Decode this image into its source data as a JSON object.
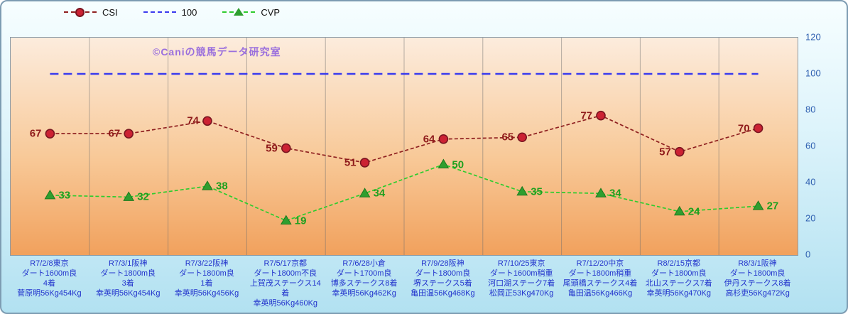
{
  "watermark": "©Caniの競馬データ研究室",
  "legend": {
    "items": [
      {
        "label": "CSI"
      },
      {
        "label": "100"
      },
      {
        "label": "CVP"
      }
    ]
  },
  "y_axis": {
    "side": "right",
    "ticks": [
      0,
      20,
      40,
      60,
      80,
      100,
      120
    ],
    "color": "#2e5fb0"
  },
  "colors": {
    "watermark": "#9a6fdd",
    "x_label_text": "#2233cc",
    "outer_background_top": "#f7feff",
    "outer_background_bottom": "#b2e1f1",
    "plot_background_top": "#fcecdd",
    "plot_background_bottom": "#f1a15d"
  },
  "chart_data": {
    "type": "line",
    "title": "",
    "xlabel": "",
    "ylabel": "",
    "ylim": [
      0,
      120
    ],
    "grid": "vertical-only",
    "legend_position": "top-left",
    "categories": [
      [
        "R7/2/8東京",
        "ダート1600m良",
        "4着",
        "菅原明56Kg454Kg"
      ],
      [
        "R7/3/1阪神",
        "ダート1800m良",
        "3着",
        "幸英明56Kg454Kg"
      ],
      [
        "R7/3/22阪神",
        "ダート1800m良",
        "1着",
        "幸英明56Kg456Kg"
      ],
      [
        "R7/5/17京都",
        "ダート1800m不良",
        "上賀茂ステークス14着",
        "幸英明56Kg460Kg"
      ],
      [
        "R7/6/28小倉",
        "ダート1700m良",
        "博多ステークス8着",
        "幸英明56Kg462Kg"
      ],
      [
        "R7/9/28阪神",
        "ダート1800m良",
        "堺ステークス5着",
        "亀田温56Kg468Kg"
      ],
      [
        "R7/10/25東京",
        "ダート1600m稍重",
        "河口湖ステーク7着",
        "松岡正53Kg470Kg"
      ],
      [
        "R7/12/20中京",
        "ダート1800m稍重",
        "尾頭橋ステークス4着",
        "亀田温56Kg466Kg"
      ],
      [
        "R8/2/15京都",
        "ダート1800m良",
        "北山ステークス7着",
        "幸英明56Kg470Kg"
      ],
      [
        "R8/3/1阪神",
        "ダート1800m良",
        "伊丹ステークス8着",
        "高杉吏56Kg472Kg"
      ]
    ],
    "series": [
      {
        "name": "CSI",
        "values": [
          67,
          67,
          74,
          59,
          51,
          64,
          65,
          77,
          57,
          70
        ],
        "line_color": "#8f2020",
        "marker": "circle",
        "marker_color": "#cc2233",
        "marker_edge": "#7a1520",
        "label_color": "#8f1a1a",
        "value_labels": "left",
        "dash": "short"
      },
      {
        "name": "100",
        "values": [
          100,
          100,
          100,
          100,
          100,
          100,
          100,
          100,
          100,
          100
        ],
        "line_color": "#3a3aee",
        "marker": "none",
        "dash": "long"
      },
      {
        "name": "CVP",
        "values": [
          33,
          32,
          38,
          19,
          34,
          50,
          35,
          34,
          24,
          27
        ],
        "line_color": "#2ecc2e",
        "marker": "triangle",
        "marker_color": "#2f9e2f",
        "marker_edge": "#1d7a1d",
        "label_color": "#1fa01f",
        "value_labels": "right",
        "dash": "short"
      }
    ]
  }
}
